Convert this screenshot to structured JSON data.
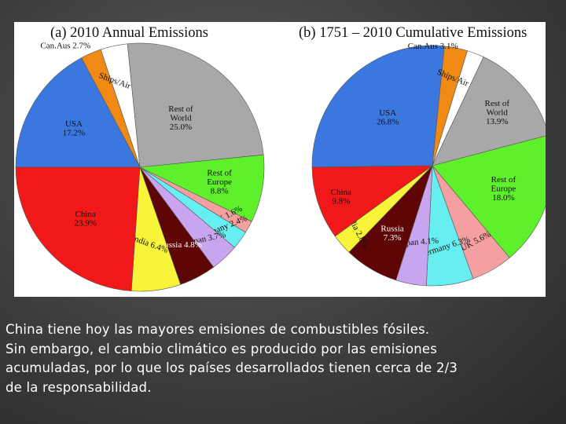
{
  "chart_data": [
    {
      "type": "pie",
      "title": "(a)  2010 Annual Emissions",
      "slices": [
        {
          "name": "USA",
          "label": "USA",
          "value": 17.2,
          "value_label": "17.2%",
          "color": "#3a78e0"
        },
        {
          "name": "CanAus",
          "label": "Can.Aus",
          "value": 2.7,
          "value_label": "2.7%",
          "color": "#f08a14"
        },
        {
          "name": "Ships/Air",
          "label": "Ships/Air",
          "value": 3.5,
          "value_label": "3.5%",
          "color": "#ffffff"
        },
        {
          "name": "Rest of World",
          "label": "Rest of World",
          "value": 25.0,
          "value_label": "25.0%",
          "color": "#a8a8a8"
        },
        {
          "name": "Rest of Europe",
          "label": "Rest of Europe",
          "value": 8.8,
          "value_label": "8.8%",
          "color": "#5ef02a"
        },
        {
          "name": "UK",
          "label": "UK",
          "value": 1.6,
          "value_label": "1.6%",
          "color": "#f5a0a0"
        },
        {
          "name": "Germany",
          "label": "Germany",
          "value": 2.4,
          "value_label": "2.4%",
          "color": "#66eef0"
        },
        {
          "name": "Japan",
          "label": "Japan",
          "value": 3.7,
          "value_label": "3.7%",
          "color": "#c9a4ef"
        },
        {
          "name": "Russia",
          "label": "Russia",
          "value": 4.8,
          "value_label": "4.8%",
          "color": "#5e0606"
        },
        {
          "name": "India",
          "label": "India",
          "value": 6.4,
          "value_label": "6.4%",
          "color": "#f7f43a"
        },
        {
          "name": "China",
          "label": "China",
          "value": 23.9,
          "value_label": "23.9%",
          "color": "#f01818"
        }
      ]
    },
    {
      "type": "pie",
      "title": "(b)  1751 – 2010 Cumulative Emissions",
      "slices": [
        {
          "name": "USA",
          "label": "USA",
          "value": 26.8,
          "value_label": "26.8%",
          "color": "#3a78e0"
        },
        {
          "name": "CanAus",
          "label": "Can.Aus",
          "value": 3.1,
          "value_label": "3.1%",
          "color": "#f08a14"
        },
        {
          "name": "Ships/Air",
          "label": "Ships/Air",
          "value": 2.3,
          "value_label": "2.3%",
          "color": "#ffffff"
        },
        {
          "name": "Rest of World",
          "label": "Rest of World",
          "value": 13.9,
          "value_label": "13.9%",
          "color": "#a8a8a8"
        },
        {
          "name": "Rest of Europe",
          "label": "Rest of Europe",
          "value": 18.0,
          "value_label": "18.0%",
          "color": "#5ef02a"
        },
        {
          "name": "UK",
          "label": "UK",
          "value": 5.6,
          "value_label": "5.6%",
          "color": "#f5a0a0"
        },
        {
          "name": "Germany",
          "label": "Germany",
          "value": 6.3,
          "value_label": "6.3%",
          "color": "#66eef0"
        },
        {
          "name": "Japan",
          "label": "Japan",
          "value": 4.1,
          "value_label": "4.1%",
          "color": "#c9a4ef"
        },
        {
          "name": "Russia",
          "label": "Russia",
          "value": 7.3,
          "value_label": "7.3%",
          "color": "#5e0606"
        },
        {
          "name": "India",
          "label": "India",
          "value": 2.8,
          "value_label": "2.8%",
          "color": "#f7f43a"
        },
        {
          "name": "China",
          "label": "China",
          "value": 9.8,
          "value_label": "9.8%",
          "color": "#f01818"
        }
      ]
    }
  ],
  "caption": {
    "lines": [
      "China tiene hoy las mayores emisiones de combustibles fósiles.",
      "Sin embargo, el cambio climático es producido por las emisiones",
      "acumuladas, por lo que los países desarrollados tienen cerca de 2/3",
      "de la responsabilidad."
    ]
  }
}
